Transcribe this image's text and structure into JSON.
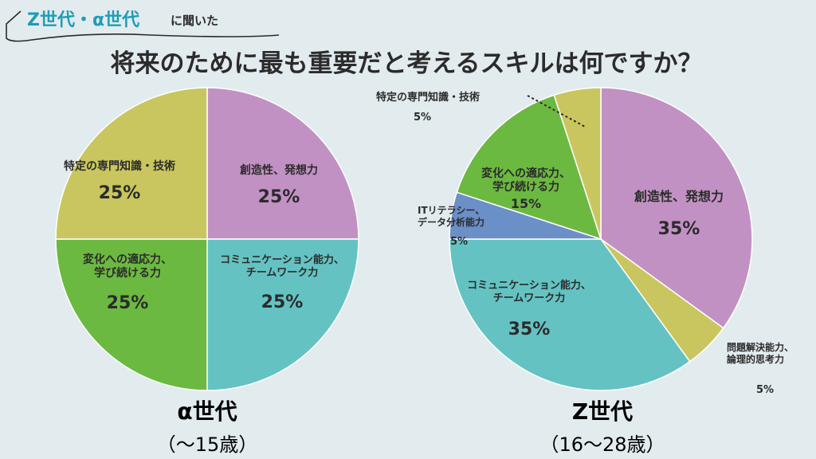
{
  "header": {
    "tag_main": "Z世代・α世代",
    "tag_suffix": "に聞いた",
    "title": "将来のために最も重要だと考えるスキルは何ですか？"
  },
  "colors": {
    "background": "#e2ebee",
    "title_accent": "#1d9db8",
    "creativity": "#c291c3",
    "communication": "#64c3c2",
    "adaptability": "#6cb941",
    "specialized": "#c9c65f",
    "it_literacy": "#6b8fc7",
    "problem_solving": "#c9c65f",
    "outline": "#ffffff"
  },
  "chart_data": [
    {
      "type": "pie",
      "group_label": "α世代",
      "group_sub": "（〜15歳）",
      "slices": [
        {
          "key": "creativity",
          "label": [
            "創造性、発想力"
          ],
          "value": 25,
          "value_label": "25%"
        },
        {
          "key": "communication",
          "label": [
            "コミュニケーション能力、",
            "チームワーク力"
          ],
          "value": 25,
          "value_label": "25%"
        },
        {
          "key": "adaptability",
          "label": [
            "変化への適応力、",
            "学び続ける力"
          ],
          "value": 25,
          "value_label": "25%"
        },
        {
          "key": "specialized",
          "label": [
            "特定の専門知識・技術"
          ],
          "value": 25,
          "value_label": "25%"
        }
      ]
    },
    {
      "type": "pie",
      "group_label": "Z世代",
      "group_sub": "（16〜28歳）",
      "slices": [
        {
          "key": "creativity",
          "label": [
            "創造性、発想力"
          ],
          "value": 35,
          "value_label": "35%"
        },
        {
          "key": "problem_solving",
          "label": [
            "問題解決能力、",
            "論理的思考力"
          ],
          "value": 5,
          "value_label": "5%"
        },
        {
          "key": "communication",
          "label": [
            "コミュニケーション能力、",
            "チームワーク力"
          ],
          "value": 35,
          "value_label": "35%"
        },
        {
          "key": "it_literacy",
          "label": [
            "ITリテラシー、",
            "データ分析能力"
          ],
          "value": 5,
          "value_label": "5%"
        },
        {
          "key": "adaptability",
          "label": [
            "変化への適応力、",
            "学び続ける力"
          ],
          "value": 15,
          "value_label": "15%"
        },
        {
          "key": "specialized",
          "label": [
            "特定の専門知識・技術"
          ],
          "value": 5,
          "value_label": "5%"
        }
      ]
    }
  ]
}
